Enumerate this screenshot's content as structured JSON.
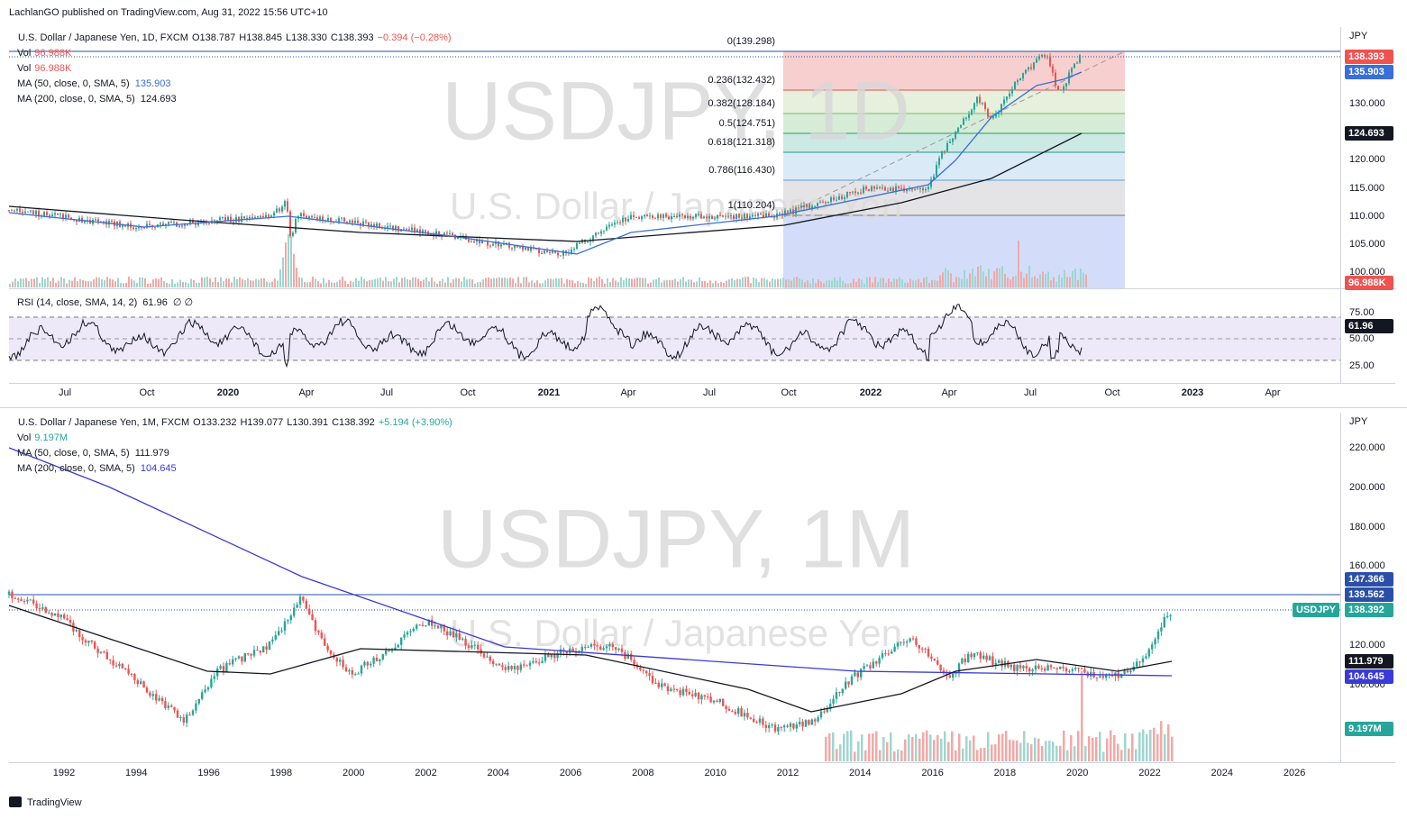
{
  "header": {
    "publisher": "LachlanGO published on TradingView.com, Aug 31, 2022 15:56 UTC+10"
  },
  "daily": {
    "symbol": "U.S. Dollar / Japanese Yen, 1D, FXCM",
    "ohlc": [
      "O138.787",
      "H138.845",
      "L138.330",
      "C138.393"
    ],
    "change": "−0.394 (−0.28%)",
    "vol": [
      {
        "label": "Vol",
        "value": "96.988K"
      },
      {
        "label": "Vol",
        "value": "96.988K"
      }
    ],
    "ma50": {
      "label": "MA (50, close, 0, SMA, 5)",
      "value": "135.903"
    },
    "ma200": {
      "label": "MA (200, close, 0, SMA, 5)",
      "value": "124.693"
    },
    "watermark": "USDJPY, 1D",
    "watermark_name": "U.S. Dollar / Japanese Yen",
    "fib": [
      "0(139.298)",
      "0.236(132.432)",
      "0.382(128.184)",
      "0.5(124.751)",
      "0.618(121.318)",
      "0.786(116.430)",
      "1(110.204)"
    ],
    "currency": "JPY",
    "yaxis": [
      "130.000",
      "120.000",
      "115.000",
      "110.000",
      "105.000",
      "100.000"
    ],
    "price_tags": {
      "last": "138.393",
      "ma50": "135.903",
      "ma200": "124.693",
      "vol": "96.988K"
    },
    "rsi": {
      "label": "RSI (14, close, SMA, 14, 2)",
      "value": "61.96",
      "extra": "∅ ∅",
      "yaxis": [
        "75.00",
        "50.00",
        "25.00"
      ],
      "tag": "61.96"
    },
    "xaxis": [
      "Jul",
      "Oct",
      "2020",
      "Apr",
      "Jul",
      "Oct",
      "2021",
      "Apr",
      "Jul",
      "Oct",
      "2022",
      "Apr",
      "Jul",
      "Oct",
      "2023",
      "Apr"
    ]
  },
  "monthly": {
    "symbol": "U.S. Dollar / Japanese Yen, 1M, FXCM",
    "ohlc": [
      "O133.232",
      "H139.077",
      "L130.391",
      "C138.392"
    ],
    "change": "+5.194 (+3.90%)",
    "vol": {
      "label": "Vol",
      "value": "9.197M"
    },
    "ma50": {
      "label": "MA (50, close, 0, SMA, 5)",
      "value": "111.979"
    },
    "ma200": {
      "label": "MA (200, close, 0, SMA, 5)",
      "value": "104.645"
    },
    "watermark": "USDJPY, 1M",
    "watermark_name": "U.S. Dollar / Japanese Yen",
    "currency": "JPY",
    "yaxis": [
      "220.000",
      "200.000",
      "180.000",
      "160.000",
      "120.000",
      "100.000"
    ],
    "price_tags": {
      "high_line": "147.366",
      "level": "139.562",
      "symbol": "USDJPY",
      "last": "138.392",
      "ma50": "111.979",
      "ma200": "104.645",
      "vol": "9.197M"
    },
    "xaxis": [
      "1992",
      "1994",
      "1996",
      "1998",
      "2000",
      "2002",
      "2004",
      "2006",
      "2008",
      "2010",
      "2012",
      "2014",
      "2016",
      "2018",
      "2020",
      "2022",
      "2024",
      "2026"
    ]
  },
  "footer": {
    "brand": "TradingView"
  }
}
